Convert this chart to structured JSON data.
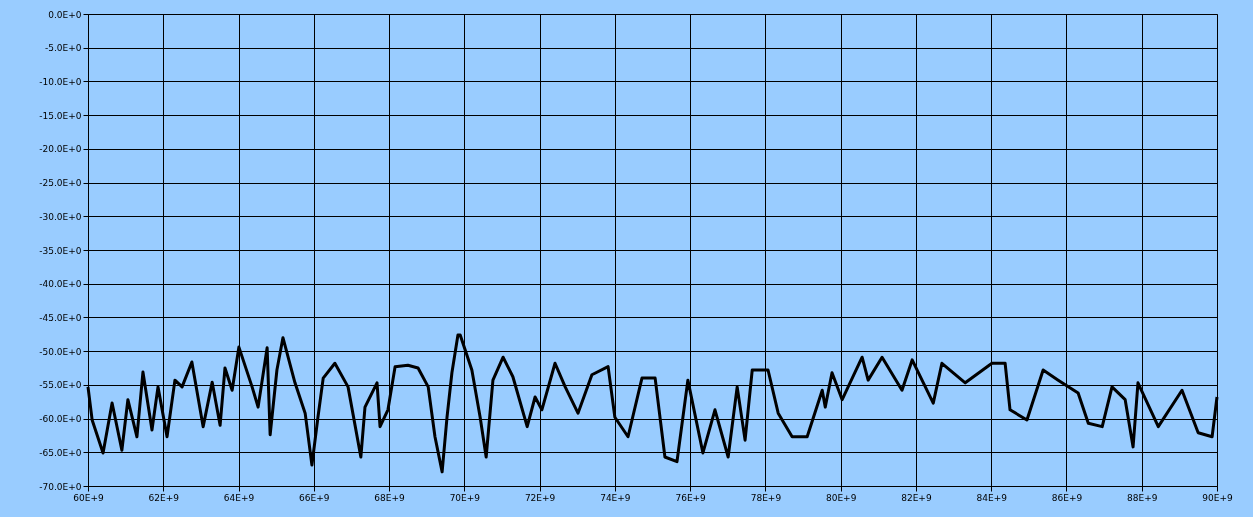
{
  "chart_data": {
    "type": "line",
    "xlim": [
      60000000000.0,
      90000000000.0
    ],
    "ylim": [
      -70,
      0
    ],
    "xticks": [
      {
        "value": 60000000000.0,
        "label": "60E+9"
      },
      {
        "value": 62000000000.0,
        "label": "62E+9"
      },
      {
        "value": 64000000000.0,
        "label": "64E+9"
      },
      {
        "value": 66000000000.0,
        "label": "66E+9"
      },
      {
        "value": 68000000000.0,
        "label": "68E+9"
      },
      {
        "value": 70000000000.0,
        "label": "70E+9"
      },
      {
        "value": 72000000000.0,
        "label": "72E+9"
      },
      {
        "value": 74000000000.0,
        "label": "74E+9"
      },
      {
        "value": 76000000000.0,
        "label": "76E+9"
      },
      {
        "value": 78000000000.0,
        "label": "78E+9"
      },
      {
        "value": 80000000000.0,
        "label": "80E+9"
      },
      {
        "value": 82000000000.0,
        "label": "82E+9"
      },
      {
        "value": 84000000000.0,
        "label": "84E+9"
      },
      {
        "value": 86000000000.0,
        "label": "86E+9"
      },
      {
        "value": 88000000000.0,
        "label": "88E+9"
      },
      {
        "value": 90000000000.0,
        "label": "90E+9"
      }
    ],
    "yticks": [
      {
        "value": 0,
        "label": "0.0E+0"
      },
      {
        "value": -5,
        "label": "-5.0E+0"
      },
      {
        "value": -10,
        "label": "-10.0E+0"
      },
      {
        "value": -15,
        "label": "-15.0E+0"
      },
      {
        "value": -20,
        "label": "-20.0E+0"
      },
      {
        "value": -25,
        "label": "-25.0E+0"
      },
      {
        "value": -30,
        "label": "-30.0E+0"
      },
      {
        "value": -35,
        "label": "-35.0E+0"
      },
      {
        "value": -40,
        "label": "-40.0E+0"
      },
      {
        "value": -45,
        "label": "-45.0E+0"
      },
      {
        "value": -50,
        "label": "-50.0E+0"
      },
      {
        "value": -55,
        "label": "-55.0E+0"
      },
      {
        "value": -60,
        "label": "-60.0E+0"
      },
      {
        "value": -65,
        "label": "-65.0E+0"
      },
      {
        "value": -70,
        "label": "-70.0E+0"
      }
    ],
    "grid": true,
    "legend": false,
    "series": [
      {
        "color": "#000000",
        "x": [
          60000000000.0,
          60110000000.0,
          60400000000.0,
          60640000000.0,
          60900000000.0,
          61060000000.0,
          61300000000.0,
          61460000000.0,
          61700000000.0,
          61860000000.0,
          62100000000.0,
          62310000000.0,
          62500000000.0,
          62760000000.0,
          63060000000.0,
          63300000000.0,
          63510000000.0,
          63640000000.0,
          63830000000.0,
          64010000000.0,
          64360000000.0,
          64520000000.0,
          64760000000.0,
          64840000000.0,
          65020000000.0,
          65180000000.0,
          65500000000.0,
          65770000000.0,
          65950000000.0,
          66110000000.0,
          66250000000.0,
          66560000000.0,
          66910000000.0,
          67250000000.0,
          67360000000.0,
          67680000000.0,
          67760000000.0,
          67970000000.0,
          68160000000.0,
          68500000000.0,
          68770000000.0,
          69040000000.0,
          69220000000.0,
          69410000000.0,
          69540000000.0,
          69670000000.0,
          69830000000.0,
          69890000000.0,
          70200000000.0,
          70420000000.0,
          70580000000.0,
          70760000000.0,
          71030000000.0,
          71290000000.0,
          71670000000.0,
          71880000000.0,
          72060000000.0,
          72410000000.0,
          72680000000.0,
          73020000000.0,
          73390000000.0,
          73820000000.0,
          74000000000.0,
          74350000000.0,
          74720000000.0,
          75070000000.0,
          75330000000.0,
          75650000000.0,
          75940000000.0,
          76340000000.0,
          76660000000.0,
          77010000000.0,
          77250000000.0,
          77460000000.0,
          77650000000.0,
          78070000000.0,
          78340000000.0,
          78710000000.0,
          79110000000.0,
          79510000000.0,
          79590000000.0,
          79770000000.0,
          80040000000.0,
          80570000000.0,
          80730000000.0,
          81100000000.0,
          81630000000.0,
          81900000000.0,
          82460000000.0,
          82690000000.0,
          83310000000.0,
          84020000000.0,
          84370000000.0,
          84500000000.0,
          84950000000.0,
          85380000000.0,
          85780000000.0,
          86310000000.0,
          86580000000.0,
          86950000000.0,
          87210000000.0,
          87560000000.0,
          87770000000.0,
          87900000000.0,
          88440000000.0,
          89070000000.0,
          89500000000.0,
          89870000000.0,
          90000000000.0
        ],
        "values": [
          -55.3,
          -60.2,
          -65.1,
          -57.7,
          -64.7,
          -57.2,
          -62.7,
          -53.1,
          -61.7,
          -55.3,
          -62.7,
          -54.3,
          -55.3,
          -51.6,
          -61.2,
          -54.6,
          -61.0,
          -52.5,
          -55.8,
          -49.4,
          -55.3,
          -58.3,
          -49.5,
          -62.4,
          -52.8,
          -48.0,
          -54.7,
          -59.2,
          -66.9,
          -59.8,
          -54.0,
          -51.8,
          -55.3,
          -65.7,
          -58.3,
          -54.7,
          -61.2,
          -58.7,
          -52.3,
          -52.1,
          -52.5,
          -55.3,
          -62.7,
          -67.9,
          -59.8,
          -53.2,
          -47.6,
          -47.6,
          -52.8,
          -59.8,
          -65.7,
          -54.3,
          -50.9,
          -53.8,
          -61.2,
          -56.8,
          -58.7,
          -51.8,
          -55.3,
          -59.2,
          -53.5,
          -52.3,
          -59.8,
          -62.7,
          -54.0,
          -54.0,
          -65.7,
          -66.4,
          -54.3,
          -65.1,
          -58.7,
          -65.7,
          -55.3,
          -63.2,
          -52.8,
          -52.8,
          -59.2,
          -62.7,
          -62.7,
          -55.8,
          -58.3,
          -53.2,
          -57.2,
          -50.9,
          -54.3,
          -50.9,
          -55.8,
          -51.3,
          -57.7,
          -51.8,
          -54.7,
          -51.8,
          -51.8,
          -58.7,
          -60.2,
          -52.8,
          -54.3,
          -56.2,
          -60.7,
          -61.2,
          -55.3,
          -57.2,
          -64.2,
          -54.7,
          -61.2,
          -55.8,
          -62.1,
          -62.7,
          -56.8
        ]
      }
    ]
  }
}
